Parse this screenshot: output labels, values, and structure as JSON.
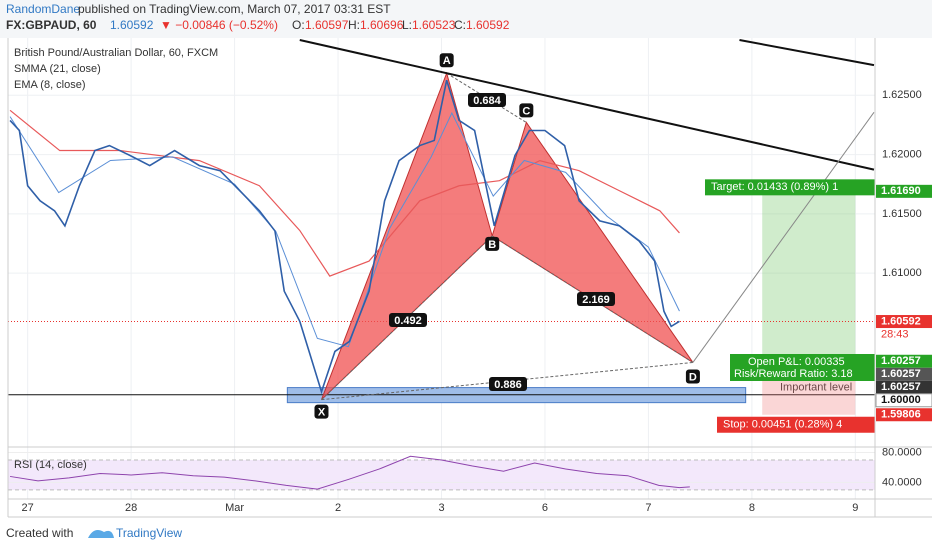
{
  "header": {
    "author": "RandomDane",
    "published": "published on TradingView.com, March 07, 2017 03:31 EST",
    "symbol": "FX:GBPAUD, 60",
    "last": "1.60592",
    "change": "▼ −0.00846 (−0.52%)",
    "o_label": "O:",
    "o": "1.60597",
    "h_label": "H:",
    "h": "1.60696",
    "l_label": "L:",
    "l": "1.60523",
    "c_label": "C:",
    "c": "1.60592"
  },
  "footer": {
    "created": "Created with",
    "brand": "TradingView"
  },
  "chart_data": [
    {
      "type": "line",
      "title": "British Pound/Australian Dollar, 60, FXCM",
      "xlim": [
        -0.19,
        8.19
      ],
      "ylim": [
        1.59534,
        1.62983
      ],
      "xticks": [
        {
          "value": 0,
          "label": "27"
        },
        {
          "value": 1,
          "label": "28"
        },
        {
          "value": 2,
          "label": "Mar"
        },
        {
          "value": 3,
          "label": "2"
        },
        {
          "value": 4,
          "label": "3"
        },
        {
          "value": 5,
          "label": "6"
        },
        {
          "value": 6,
          "label": "7"
        },
        {
          "value": 7,
          "label": "8"
        },
        {
          "value": 8,
          "label": "9"
        }
      ],
      "yticks": [
        {
          "value": 1.625,
          "label": "1.62500"
        },
        {
          "value": 1.62,
          "label": "1.62000"
        },
        {
          "value": 1.615,
          "label": "1.61500"
        },
        {
          "value": 1.61,
          "label": "1.61000"
        }
      ],
      "grid": true,
      "series": [
        {
          "name": "GBPAUD",
          "color": "#2f5fa8",
          "x": [
            -0.17,
            -0.08,
            0,
            0.12,
            0.26,
            0.36,
            0.5,
            0.65,
            0.79,
            0.99,
            1.18,
            1.42,
            1.66,
            1.86,
            2.05,
            2.24,
            2.39,
            2.48,
            2.63,
            2.72,
            2.84,
            2.97,
            3.11,
            3.3,
            3.45,
            3.59,
            3.79,
            3.93,
            4.05,
            4.17,
            4.32,
            4.42,
            4.51,
            4.61,
            4.71,
            4.85,
            5.0,
            5.19,
            5.33,
            5.53,
            5.72,
            5.91,
            6.06,
            6.15,
            6.22,
            6.3
          ],
          "values": [
            1.62288,
            1.62203,
            1.61737,
            1.6161,
            1.61526,
            1.61399,
            1.61737,
            1.62034,
            1.62076,
            1.61992,
            1.61907,
            1.62034,
            1.61907,
            1.61864,
            1.61695,
            1.61526,
            1.61356,
            1.60848,
            1.60594,
            1.6034,
            1.6,
            1.6034,
            1.60424,
            1.60848,
            1.6161,
            1.61949,
            1.62076,
            1.62119,
            1.62627,
            1.62288,
            1.62203,
            1.6178,
            1.61399,
            1.61695,
            1.61992,
            1.62203,
            1.62203,
            1.62076,
            1.6161,
            1.61441,
            1.61399,
            1.61271,
            1.61102,
            1.60679,
            1.60551,
            1.60594
          ]
        },
        {
          "name": "SMMA (21, close)",
          "color": "#e8595a",
          "x": [
            -0.17,
            0.31,
            0.89,
            1.66,
            2.24,
            2.63,
            2.92,
            3.3,
            3.79,
            4.17,
            4.56,
            4.95,
            5.33,
            5.72,
            6.11,
            6.3
          ],
          "values": [
            1.62373,
            1.62034,
            1.62034,
            1.61949,
            1.61737,
            1.6136,
            1.60975,
            1.61102,
            1.6161,
            1.61737,
            1.6178,
            1.61949,
            1.61864,
            1.61695,
            1.61526,
            1.61339
          ]
        },
        {
          "name": "EMA (8, close)",
          "color": "#5b8fd6",
          "x": [
            -0.17,
            0.3,
            0.8,
            1.4,
            2.0,
            2.4,
            2.8,
            3.1,
            3.5,
            3.9,
            4.1,
            4.5,
            4.8,
            5.2,
            5.6,
            6.0,
            6.3
          ],
          "values": [
            1.6232,
            1.6168,
            1.6195,
            1.6198,
            1.6175,
            1.6135,
            1.6045,
            1.6038,
            1.6138,
            1.6198,
            1.6235,
            1.6165,
            1.6195,
            1.6185,
            1.6148,
            1.6122,
            1.6068
          ]
        }
      ],
      "pattern": {
        "color": "#f05050",
        "points": [
          {
            "name": "X",
            "x": 2.84,
            "y": 1.59933
          },
          {
            "name": "A",
            "x": 4.05,
            "y": 1.62686
          },
          {
            "name": "B",
            "x": 4.49,
            "y": 1.61314
          },
          {
            "name": "C",
            "x": 4.82,
            "y": 1.62271
          },
          {
            "name": "D",
            "x": 6.43,
            "y": 1.60247
          }
        ],
        "ratios": [
          0.684,
          0.492,
          2.169,
          0.886
        ]
      },
      "trendlines": [
        {
          "x": [
            2.63,
            8.18
          ],
          "y": [
            1.62966,
            1.61873
          ],
          "color": "#111111"
        },
        {
          "x": [
            6.88,
            8.18
          ],
          "y": [
            1.62966,
            1.62754
          ],
          "color": "#111111"
        },
        {
          "x": [
            6.43,
            8.18
          ],
          "y": [
            1.60247,
            1.62356
          ],
          "color": "#888888"
        }
      ],
      "zone": {
        "x": [
          2.51,
          6.94
        ],
        "y": [
          1.59908,
          1.60035
        ],
        "color": "#9fbde8"
      },
      "level": {
        "value": 1.59975,
        "label": "Important level"
      },
      "current": {
        "value": 1.60592,
        "timer": "28:43"
      },
      "position": {
        "x": [
          7.1,
          8.0
        ],
        "entry": 1.60257,
        "target": 1.6169,
        "stop": 1.59806,
        "target_text": "Target: 0.01433 (0.89%) 1",
        "pnl_text": "Open P&L: 0.00335",
        "rr_text": "Risk/Reward Ratio: 3.18",
        "stop_text": "Stop: 0.00451 (0.28%) 4"
      },
      "price_labels": [
        {
          "value": 1.6169,
          "label": "1.61690",
          "color": "#26a324"
        },
        {
          "value": 1.60592,
          "label": "1.60592",
          "color": "#e8322e"
        },
        {
          "value": 1.60257,
          "label": "1.60257",
          "color": "#26a324"
        },
        {
          "value": 1.60257,
          "label": "1.60257",
          "color": "#555555"
        },
        {
          "value": 1.60257,
          "label": "1.60257",
          "color": "#333333"
        },
        {
          "value": 1.6,
          "label": "1.60000",
          "color": "#ffffff"
        },
        {
          "value": 1.59806,
          "label": "1.59806",
          "color": "#e8322e"
        }
      ]
    },
    {
      "type": "line",
      "title": "RSI (14, close)",
      "xlim": [
        -0.19,
        8.19
      ],
      "ylim": [
        17.8,
        87.4
      ],
      "yticks": [
        {
          "value": 80,
          "label": "80.0000"
        },
        {
          "value": 40,
          "label": "40.0000"
        }
      ],
      "band": [
        30,
        70
      ],
      "series": [
        {
          "name": "RSI",
          "color": "#8e44ad",
          "x": [
            -0.17,
            0.1,
            0.4,
            0.7,
            1.0,
            1.3,
            1.6,
            1.9,
            2.2,
            2.5,
            2.8,
            3.1,
            3.4,
            3.7,
            4.0,
            4.3,
            4.6,
            4.9,
            5.2,
            5.5,
            5.8,
            6.1,
            6.3,
            6.4
          ],
          "values": [
            48,
            42,
            46,
            52,
            50,
            53,
            49,
            47,
            42,
            36,
            31,
            44,
            58,
            75,
            70,
            62,
            55,
            66,
            58,
            52,
            49,
            36,
            33,
            34
          ]
        }
      ]
    }
  ]
}
